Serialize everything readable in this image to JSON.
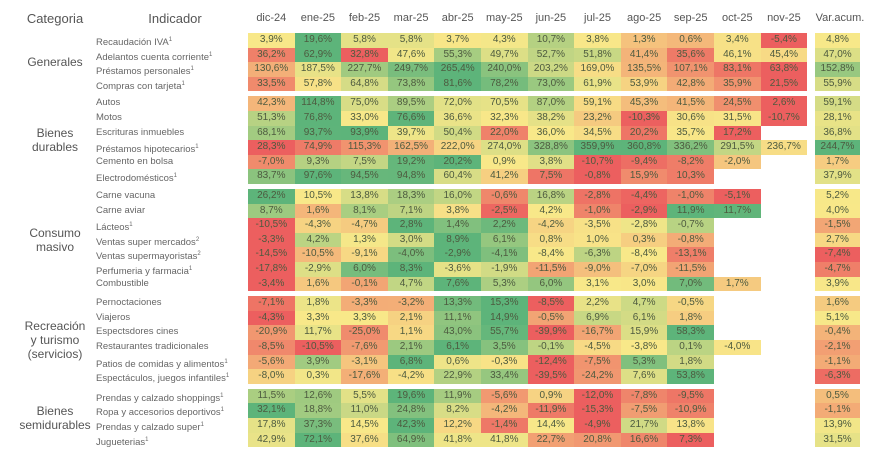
{
  "header": {
    "category": "Categoria",
    "indicator": "Indicador",
    "acum": "Var.acum."
  },
  "chart_data": {
    "type": "heatmap",
    "color_scale": {
      "low": "#EC5F5F",
      "mid": "#F8E889",
      "high": "#5DB47A"
    },
    "months": [
      "dic-24",
      "ene-25",
      "feb-25",
      "mar-25",
      "abr-25",
      "may-25",
      "jun-25",
      "jul-25",
      "ago-25",
      "sep-25",
      "oct-25",
      "nov-25"
    ],
    "unit": "%",
    "groups": [
      {
        "category": "Generales",
        "rows": [
          {
            "name": "Recaudación IVA",
            "note": "1",
            "values": [
              3.9,
              19.6,
              5.8,
              5.8,
              3.7,
              4.3,
              10.7,
              3.8,
              1.3,
              0.6,
              3.4,
              -5.4
            ],
            "acum": 4.8
          },
          {
            "name": "Adelantos cuenta corriente",
            "note": "1",
            "values": [
              36.2,
              62.9,
              32.8,
              47.6,
              55.3,
              49.7,
              52.7,
              51.8,
              41.4,
              35.6,
              46.1,
              45.4
            ],
            "acum": 47.0
          },
          {
            "name": "Préstamos personales",
            "note": "1",
            "values": [
              130.6,
              187.5,
              227.7,
              249.7,
              265.4,
              240.0,
              203.2,
              169.0,
              135.5,
              107.1,
              83.1,
              63.8
            ],
            "acum": 152.8
          },
          {
            "name": "Compras con tarjeta",
            "note": "1",
            "values": [
              33.5,
              57.8,
              64.8,
              73.8,
              81.6,
              78.2,
              73.0,
              61.9,
              53.9,
              42.8,
              35.9,
              21.5
            ],
            "acum": 55.9
          }
        ]
      },
      {
        "category": "Bienes durables",
        "rows": [
          {
            "name": "Autos",
            "note": "",
            "values": [
              42.3,
              114.8,
              75.0,
              89.5,
              72.0,
              70.5,
              87.0,
              59.1,
              45.3,
              41.5,
              24.5,
              2.6
            ],
            "acum": 59.1
          },
          {
            "name": "Motos",
            "note": "",
            "values": [
              51.3,
              76.8,
              33.0,
              76.6,
              36.6,
              32.3,
              38.2,
              23.2,
              -10.3,
              30.6,
              31.5,
              -10.7
            ],
            "acum": 28.1
          },
          {
            "name": "Escrituras inmuebles",
            "note": "",
            "values": [
              68.1,
              93.7,
              93.9,
              39.7,
              50.4,
              22.0,
              36.0,
              34.5,
              20.2,
              35.7,
              17.2,
              null
            ],
            "acum": 36.8
          },
          {
            "name": "Préstamos hipotecarios",
            "note": "1",
            "values": [
              28.3,
              74.9,
              115.3,
              162.5,
              222.0,
              274.0,
              328.8,
              359.9,
              360.8,
              336.2,
              291.5,
              236.7
            ],
            "acum": 244.7
          },
          {
            "name": "Cemento en bolsa",
            "note": "",
            "values": [
              -7.0,
              9.3,
              7.5,
              19.2,
              20.2,
              0.9,
              3.8,
              -10.7,
              -9.4,
              -8.2,
              -2.0,
              null
            ],
            "acum": 1.7
          },
          {
            "name": "Electrodomésticos",
            "note": "1",
            "values": [
              83.7,
              97.6,
              94.5,
              94.8,
              60.4,
              41.2,
              7.5,
              -0.8,
              15.9,
              10.3,
              null,
              null
            ],
            "acum": 37.9
          }
        ]
      },
      {
        "category": "Consumo masivo",
        "rows": [
          {
            "name": "Carne vacuna",
            "note": "",
            "values": [
              26.2,
              10.5,
              13.8,
              18.3,
              16.0,
              -0.6,
              16.8,
              -2.8,
              -4.4,
              -1.0,
              -5.1,
              null
            ],
            "acum": 5.2
          },
          {
            "name": "Carne aviar",
            "note": "",
            "values": [
              8.7,
              1.6,
              8.1,
              7.1,
              3.8,
              -2.5,
              4.2,
              -1.0,
              -2.9,
              11.9,
              11.7,
              null
            ],
            "acum": 4.0
          },
          {
            "name": "Lácteos",
            "note": "1",
            "values": [
              -10.5,
              -4.3,
              -4.7,
              2.8,
              1.4,
              2.2,
              -4.2,
              -3.5,
              -2.8,
              -0.7,
              null,
              null
            ],
            "acum": -1.5
          },
          {
            "name": "Ventas super mercados",
            "note": "2",
            "values": [
              -3.3,
              4.2,
              1.3,
              3.0,
              8.9,
              6.1,
              0.8,
              1.0,
              0.3,
              -0.8,
              null,
              null
            ],
            "acum": 2.7
          },
          {
            "name": "Ventas supermayoristas",
            "note": "2",
            "values": [
              -14.5,
              -10.5,
              -9.1,
              -4.0,
              -2.9,
              -4.1,
              -8.4,
              -6.3,
              -8.4,
              -13.1,
              null,
              null
            ],
            "acum": -7.4
          },
          {
            "name": "Perfumeria y farmacia",
            "note": "1",
            "values": [
              -17.8,
              -2.9,
              6.0,
              8.3,
              -3.6,
              -1.9,
              -11.5,
              -9.0,
              -7.0,
              -11.5,
              null,
              null
            ],
            "acum": -4.7
          },
          {
            "name": "Combustible",
            "note": "",
            "values": [
              -3.4,
              1.6,
              -0.1,
              4.7,
              7.6,
              5.3,
              6.0,
              3.1,
              3.0,
              7.0,
              1.7,
              null
            ],
            "acum": 3.9
          }
        ]
      },
      {
        "category": "Recreación y turismo (servicios)",
        "rows": [
          {
            "name": "Pernoctaciones",
            "note": "",
            "values": [
              -7.1,
              1.8,
              -3.3,
              -3.2,
              13.3,
              15.3,
              -8.5,
              2.2,
              4.7,
              -0.5,
              null,
              null
            ],
            "acum": 1.6
          },
          {
            "name": "Viajeros",
            "note": "",
            "values": [
              -4.3,
              3.3,
              3.3,
              2.1,
              11.1,
              14.9,
              -0.5,
              6.9,
              6.1,
              1.8,
              null,
              null
            ],
            "acum": 5.1
          },
          {
            "name": "Espectsdores cines",
            "note": "",
            "values": [
              -20.9,
              11.7,
              -25.0,
              1.1,
              43.0,
              55.7,
              -39.9,
              -16.7,
              15.9,
              58.3,
              null,
              null
            ],
            "acum": -0.4
          },
          {
            "name": "Restaurantes tradicionales",
            "note": "",
            "values": [
              -8.5,
              -10.5,
              -7.6,
              2.1,
              6.1,
              3.5,
              -0.1,
              -4.5,
              -3.8,
              0.1,
              -4.0,
              null
            ],
            "acum": -2.1
          },
          {
            "name": "Patios de comidas y alimentos",
            "note": "1",
            "values": [
              -5.6,
              3.9,
              -3.1,
              6.8,
              0.6,
              -0.3,
              -12.4,
              -7.5,
              5.3,
              1.8,
              null,
              null
            ],
            "acum": -1.1
          },
          {
            "name": "Espectáculos, juegos infantiles",
            "note": "1",
            "values": [
              -8.0,
              0.3,
              -17.6,
              -4.2,
              22.9,
              33.4,
              -39.5,
              -24.2,
              7.6,
              53.8,
              null,
              null
            ],
            "acum": -6.3
          }
        ]
      },
      {
        "category": "Bienes semidurables",
        "rows": [
          {
            "name": "Prendas y calzado shoppings",
            "note": "1",
            "values": [
              11.5,
              12.6,
              5.5,
              19.6,
              11.9,
              -5.6,
              0.9,
              -12.0,
              -7.8,
              -9.5,
              null,
              null
            ],
            "acum": 0.5
          },
          {
            "name": "Ropa y accesorios deportivos",
            "note": "1",
            "values": [
              32.1,
              18.8,
              11.0,
              24.8,
              8.2,
              -4.2,
              -11.9,
              -15.3,
              -7.5,
              -10.9,
              null,
              null
            ],
            "acum": -1.1
          },
          {
            "name": "Prendas y calzado super",
            "note": "1",
            "values": [
              17.8,
              37.3,
              14.5,
              42.3,
              12.2,
              -1.4,
              14.4,
              -4.9,
              21.7,
              13.8,
              null,
              null
            ],
            "acum": 13.9
          },
          {
            "name": "Jugueterias",
            "note": "1",
            "values": [
              42.9,
              72.1,
              37.6,
              64.9,
              41.8,
              41.8,
              22.7,
              20.8,
              16.6,
              7.3,
              null,
              null
            ],
            "acum": 31.5
          }
        ]
      }
    ]
  }
}
